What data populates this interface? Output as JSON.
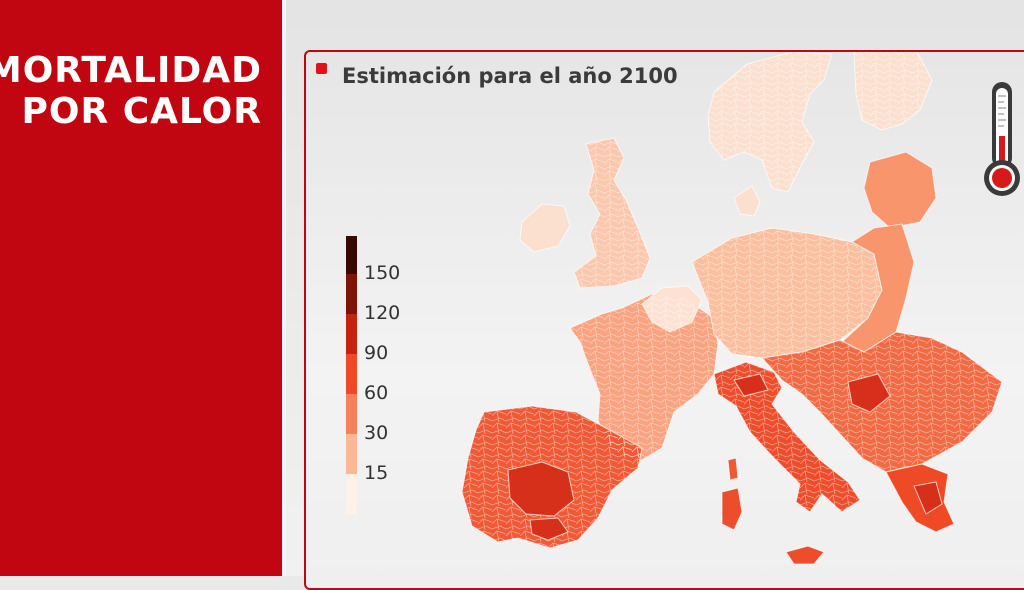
{
  "headline": {
    "line1": "MORTALIDAD",
    "line2": "POR CALOR"
  },
  "map": {
    "title": "Estimación para el año 2100",
    "legend": {
      "labels": [
        "150",
        "120",
        "90",
        "60",
        "30",
        "15"
      ],
      "colors": [
        "#3a0804",
        "#7e1308",
        "#c3230f",
        "#ee4a26",
        "#f6805c",
        "#fbb896",
        "#fef2e8"
      ]
    },
    "palette": {
      "nordic": "#fce0cf",
      "british": "#fbc8ae",
      "france": "#f9a380",
      "central": "#fbbf9f",
      "benelux": "#fde2d2",
      "eastern": "#f8956d",
      "balkans": "#f06a43",
      "iberia": "#ee5a36",
      "italy": "#ec4e2c",
      "greece": "#ee4a26",
      "hot_spot": "#d6301a"
    },
    "icon": "thermometer-icon"
  },
  "colors": {
    "brand_red": "#c10612",
    "marker_red": "#e3101c"
  }
}
